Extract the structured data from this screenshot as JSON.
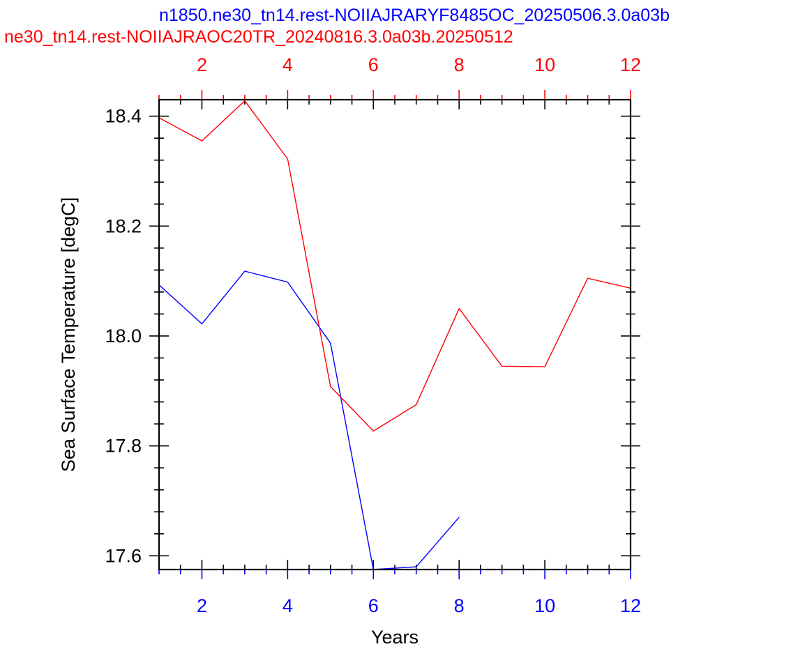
{
  "chart_data": {
    "type": "line",
    "titles": [
      {
        "text": "n1850.ne30_tn14.rest-NOIIAJRARYF8485OC_20250506.3.0a03b",
        "color": "#0000ff"
      },
      {
        "text": "ne30_tn14.rest-NOIIAJRAOC20TR_20240816.3.0a03b.20250512",
        "color": "#ff0000"
      }
    ],
    "xlabel": "Years",
    "ylabel": "Sea Surface Temperature [degC]",
    "xlim": [
      1,
      12
    ],
    "ylim": [
      17.575,
      18.43
    ],
    "x_ticks": [
      2,
      4,
      6,
      8,
      10,
      12
    ],
    "x_tick_labels": [
      "2",
      "4",
      "6",
      "8",
      "10",
      "12"
    ],
    "y_ticks": [
      17.6,
      17.8,
      18.0,
      18.2,
      18.4
    ],
    "y_tick_labels": [
      "17.6",
      "17.8",
      "18.0",
      "18.2",
      "18.4"
    ],
    "grid": false,
    "series": [
      {
        "color": "#0000ff",
        "x": [
          1,
          2,
          3,
          4,
          5,
          6,
          7,
          8
        ],
        "y": [
          18.093,
          18.022,
          18.118,
          18.098,
          17.987,
          17.575,
          17.58,
          17.67
        ]
      },
      {
        "color": "#ff0000",
        "x": [
          1,
          2,
          3,
          4,
          5,
          6,
          7,
          8,
          9,
          10,
          11,
          12
        ],
        "y": [
          18.397,
          18.355,
          18.428,
          18.322,
          17.908,
          17.827,
          17.875,
          18.05,
          17.945,
          17.944,
          18.105,
          18.087
        ]
      }
    ]
  }
}
